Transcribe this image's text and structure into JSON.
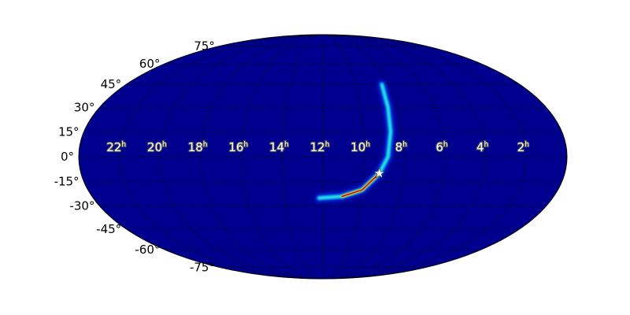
{
  "chart_data": {
    "type": "heatmap",
    "projection": "mollweide",
    "colormap": "jet",
    "background_color": "#00008f",
    "grid": true,
    "lon_labels": [
      "22",
      "20",
      "18",
      "16",
      "14",
      "12",
      "10",
      "8",
      "6",
      "4",
      "2"
    ],
    "lon_values_hours": [
      22,
      20,
      18,
      16,
      14,
      12,
      10,
      8,
      6,
      4,
      2
    ],
    "hour_unit": "h",
    "lat_labels": [
      "75°",
      "60°",
      "45°",
      "30°",
      "15°",
      "0°",
      "-15°",
      "-30°",
      "-45°",
      "-60°",
      "-75°"
    ],
    "lat_values_deg": [
      75,
      60,
      45,
      30,
      15,
      0,
      -15,
      -30,
      -45,
      -60,
      -75
    ],
    "probability_arc": {
      "description_points_ra_hours_dec_deg": [
        [
          8.4,
          45
        ],
        [
          8.5,
          30
        ],
        [
          8.6,
          15
        ],
        [
          8.8,
          0
        ],
        [
          9.2,
          -10
        ],
        [
          10.0,
          -20
        ],
        [
          11.0,
          -24
        ],
        [
          12.2,
          -25
        ]
      ],
      "peak_ra_hours": 10.2,
      "peak_dec_deg": -19
    },
    "marker": {
      "symbol": "star",
      "ra_hours": 9.2,
      "dec_deg": -10,
      "color": "#ffffff"
    }
  }
}
